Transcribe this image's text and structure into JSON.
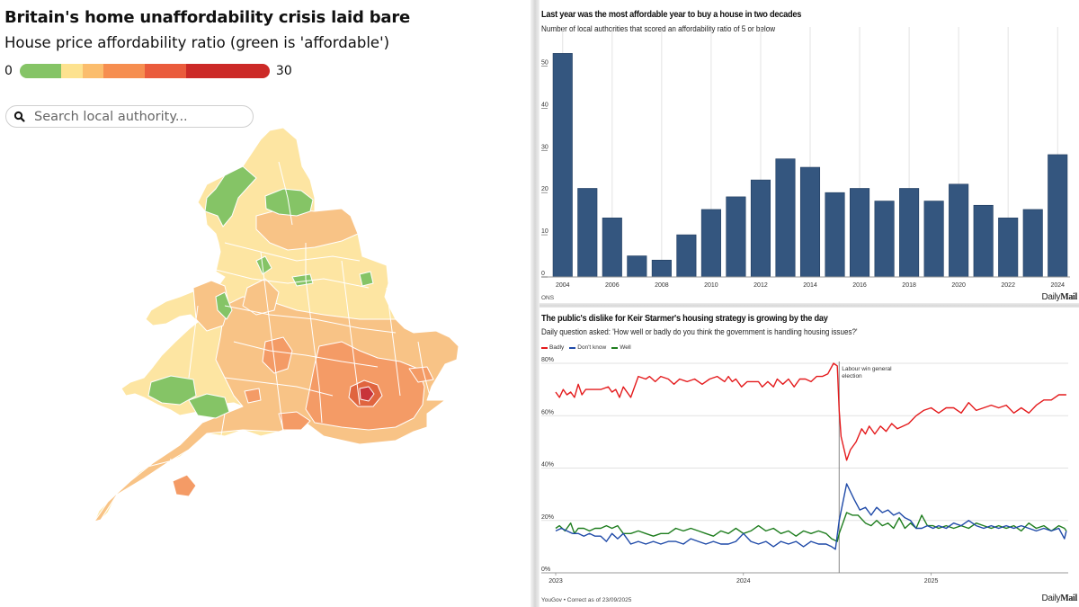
{
  "left_panel": {
    "title": "Britain's home unaffordability crisis laid bare",
    "subtitle": "House price affordability ratio (green is 'affordable')",
    "legend": {
      "min": "0",
      "max": "30",
      "colors": [
        "#85c466",
        "#fde28f",
        "#fbbd6d",
        "#f68e50",
        "#ea5b3c",
        "#cc2a27"
      ]
    },
    "search": {
      "placeholder": "Search local authority...",
      "value": "",
      "icon": "search-icon"
    },
    "map_colors": {
      "green": "#85c466",
      "pale": "#fde5a2",
      "light_orange": "#f8c386",
      "orange": "#f49b66",
      "dark_orange": "#ee7f50",
      "red": "#d94a3a"
    }
  },
  "chart_data": [
    {
      "type": "bar",
      "title": "Last year was the most affordable year to buy a house in two decades",
      "subtitle": "Number of local authorities that scored an affordability ratio of 5 or below",
      "categories": [
        "2004",
        "2005",
        "2006",
        "2007",
        "2008",
        "2009",
        "2010",
        "2011",
        "2012",
        "2013",
        "2014",
        "2015",
        "2016",
        "2017",
        "2018",
        "2019",
        "2020",
        "2021",
        "2022",
        "2023",
        "2024"
      ],
      "values": [
        53,
        21,
        14,
        5,
        4,
        10,
        16,
        19,
        23,
        28,
        26,
        20,
        21,
        18,
        21,
        18,
        22,
        17,
        14,
        16,
        29
      ],
      "x_tick_labels": [
        "2004",
        "2006",
        "2008",
        "2010",
        "2012",
        "2014",
        "2016",
        "2018",
        "2020",
        "2022",
        "2024"
      ],
      "y_tick_labels": [
        "0",
        "10",
        "20",
        "30",
        "40",
        "50"
      ],
      "ylim": [
        0,
        55
      ],
      "xlabel": "",
      "ylabel": "",
      "grid": "vertical",
      "bar_color": "#34567f",
      "source": "ONS",
      "brand": {
        "light": "Daily",
        "bold": "Mail"
      }
    },
    {
      "type": "line",
      "title": "The public's dislike for Keir Starmer's housing strategy is growing by the day",
      "subtitle": "Daily question asked: 'How well or badly do you think the government is handling housing issues?'",
      "legend": [
        {
          "name": "Badly",
          "color": "#e41a1c"
        },
        {
          "name": "Don't know",
          "color": "#1f4aa8"
        },
        {
          "name": "Well",
          "color": "#1e7d1e"
        }
      ],
      "legend_position": "top-left",
      "x_tick_labels": [
        "2023",
        "2024",
        "2025"
      ],
      "x_range": [
        2023.0,
        2025.73
      ],
      "y_tick_labels": [
        "0%",
        "20%",
        "40%",
        "60%",
        "80%"
      ],
      "ylim": [
        0,
        80
      ],
      "grid": "horizontal",
      "annotation": {
        "text_line1": "Labour win general",
        "text_line2": "election",
        "x": 2024.51
      },
      "series": [
        {
          "name": "Badly",
          "x": [
            2023.0,
            2023.02,
            2023.04,
            2023.06,
            2023.08,
            2023.1,
            2023.12,
            2023.14,
            2023.16,
            2023.2,
            2023.24,
            2023.28,
            2023.3,
            2023.32,
            2023.34,
            2023.36,
            2023.4,
            2023.44,
            2023.48,
            2023.5,
            2023.53,
            2023.56,
            2023.6,
            2023.63,
            2023.66,
            2023.7,
            2023.74,
            2023.78,
            2023.82,
            2023.86,
            2023.88,
            2023.9,
            2023.92,
            2023.94,
            2023.96,
            2023.99,
            2024.02,
            2024.05,
            2024.08,
            2024.1,
            2024.13,
            2024.16,
            2024.18,
            2024.21,
            2024.24,
            2024.27,
            2024.3,
            2024.33,
            2024.36,
            2024.39,
            2024.42,
            2024.45,
            2024.48,
            2024.5,
            2024.51,
            2024.52,
            2024.55,
            2024.57,
            2024.6,
            2024.63,
            2024.65,
            2024.67,
            2024.7,
            2024.73,
            2024.76,
            2024.79,
            2024.82,
            2024.85,
            2024.88,
            2024.92,
            2024.96,
            2025.0,
            2025.04,
            2025.08,
            2025.12,
            2025.16,
            2025.2,
            2025.24,
            2025.28,
            2025.32,
            2025.36,
            2025.4,
            2025.44,
            2025.48,
            2025.52,
            2025.56,
            2025.6,
            2025.64,
            2025.68,
            2025.72
          ],
          "values": [
            69,
            67,
            70,
            68,
            69,
            67,
            72,
            68,
            70,
            70,
            70,
            71,
            69,
            70,
            67,
            71,
            67,
            75,
            74,
            75,
            73,
            75,
            74,
            72,
            74,
            73,
            74,
            72,
            74,
            75,
            74,
            73,
            75,
            73,
            74,
            71,
            73,
            73,
            73,
            71,
            73,
            71,
            74,
            72,
            74,
            71,
            74,
            74,
            73,
            75,
            75,
            76,
            80,
            79,
            62,
            52,
            43,
            47,
            50,
            55,
            53,
            56,
            53,
            56,
            54,
            57,
            55,
            56,
            57,
            60,
            62,
            63,
            61,
            63,
            63,
            61,
            65,
            62,
            63,
            64,
            63,
            64,
            61,
            63,
            61,
            64,
            66,
            66,
            68,
            68
          ],
          "color": "#e41a1c"
        },
        {
          "name": "Don't know",
          "x": [
            2023.0,
            2023.03,
            2023.06,
            2023.09,
            2023.12,
            2023.15,
            2023.18,
            2023.21,
            2023.24,
            2023.27,
            2023.3,
            2023.33,
            2023.36,
            2023.4,
            2023.44,
            2023.48,
            2023.52,
            2023.56,
            2023.6,
            2023.64,
            2023.68,
            2023.72,
            2023.76,
            2023.8,
            2023.84,
            2023.88,
            2023.92,
            2023.96,
            2024.0,
            2024.04,
            2024.08,
            2024.12,
            2024.16,
            2024.2,
            2024.24,
            2024.28,
            2024.32,
            2024.36,
            2024.4,
            2024.44,
            2024.47,
            2024.49,
            2024.51,
            2024.55,
            2024.59,
            2024.62,
            2024.65,
            2024.68,
            2024.71,
            2024.74,
            2024.77,
            2024.8,
            2024.83,
            2024.86,
            2024.89,
            2024.92,
            2024.95,
            2024.98,
            2025.01,
            2025.04,
            2025.08,
            2025.12,
            2025.16,
            2025.2,
            2025.24,
            2025.28,
            2025.32,
            2025.36,
            2025.4,
            2025.44,
            2025.48,
            2025.52,
            2025.56,
            2025.6,
            2025.64,
            2025.68,
            2025.71,
            2025.72
          ],
          "values": [
            16,
            17,
            16,
            15,
            15,
            14,
            15,
            14,
            14,
            12,
            15,
            13,
            15,
            11,
            12,
            11,
            12,
            11,
            12,
            12,
            11,
            13,
            12,
            11,
            12,
            11,
            11,
            12,
            15,
            12,
            11,
            12,
            10,
            12,
            11,
            12,
            10,
            12,
            11,
            11,
            10,
            9,
            20,
            34,
            28,
            24,
            25,
            22,
            25,
            23,
            24,
            22,
            23,
            21,
            20,
            17,
            17,
            18,
            17,
            18,
            17,
            19,
            18,
            20,
            18,
            17,
            18,
            17,
            18,
            17,
            18,
            17,
            16,
            17,
            16,
            17,
            13,
            16
          ],
          "color": "#1f4aa8"
        },
        {
          "name": "Well",
          "x": [
            2023.0,
            2023.02,
            2023.05,
            2023.08,
            2023.1,
            2023.12,
            2023.15,
            2023.18,
            2023.21,
            2023.24,
            2023.27,
            2023.3,
            2023.33,
            2023.36,
            2023.4,
            2023.44,
            2023.48,
            2023.52,
            2023.56,
            2023.6,
            2023.64,
            2023.68,
            2023.72,
            2023.76,
            2023.8,
            2023.84,
            2023.88,
            2023.92,
            2023.96,
            2024.0,
            2024.04,
            2024.08,
            2024.12,
            2024.16,
            2024.2,
            2024.24,
            2024.28,
            2024.32,
            2024.36,
            2024.4,
            2024.44,
            2024.47,
            2024.5,
            2024.51,
            2024.55,
            2024.58,
            2024.61,
            2024.65,
            2024.68,
            2024.71,
            2024.74,
            2024.77,
            2024.8,
            2024.83,
            2024.86,
            2024.89,
            2024.92,
            2024.95,
            2024.98,
            2025.01,
            2025.04,
            2025.08,
            2025.12,
            2025.16,
            2025.2,
            2025.24,
            2025.28,
            2025.32,
            2025.36,
            2025.4,
            2025.44,
            2025.48,
            2025.52,
            2025.56,
            2025.6,
            2025.64,
            2025.68,
            2025.71,
            2025.72
          ],
          "values": [
            17,
            18,
            16,
            19,
            15,
            17,
            17,
            16,
            17,
            17,
            18,
            17,
            18,
            15,
            15,
            16,
            15,
            14,
            15,
            15,
            17,
            16,
            17,
            16,
            15,
            14,
            16,
            15,
            17,
            15,
            16,
            18,
            16,
            17,
            15,
            16,
            14,
            16,
            15,
            16,
            15,
            13,
            12,
            15,
            23,
            22,
            22,
            19,
            18,
            20,
            18,
            19,
            17,
            21,
            17,
            19,
            17,
            22,
            18,
            18,
            17,
            18,
            17,
            18,
            17,
            19,
            18,
            17,
            18,
            17,
            18,
            16,
            19,
            17,
            18,
            16,
            18,
            17,
            16
          ],
          "color": "#1e7d1e"
        }
      ],
      "source": "YouGov • Correct as of 23/09/2025",
      "brand": {
        "light": "Daily",
        "bold": "Mail"
      }
    }
  ]
}
